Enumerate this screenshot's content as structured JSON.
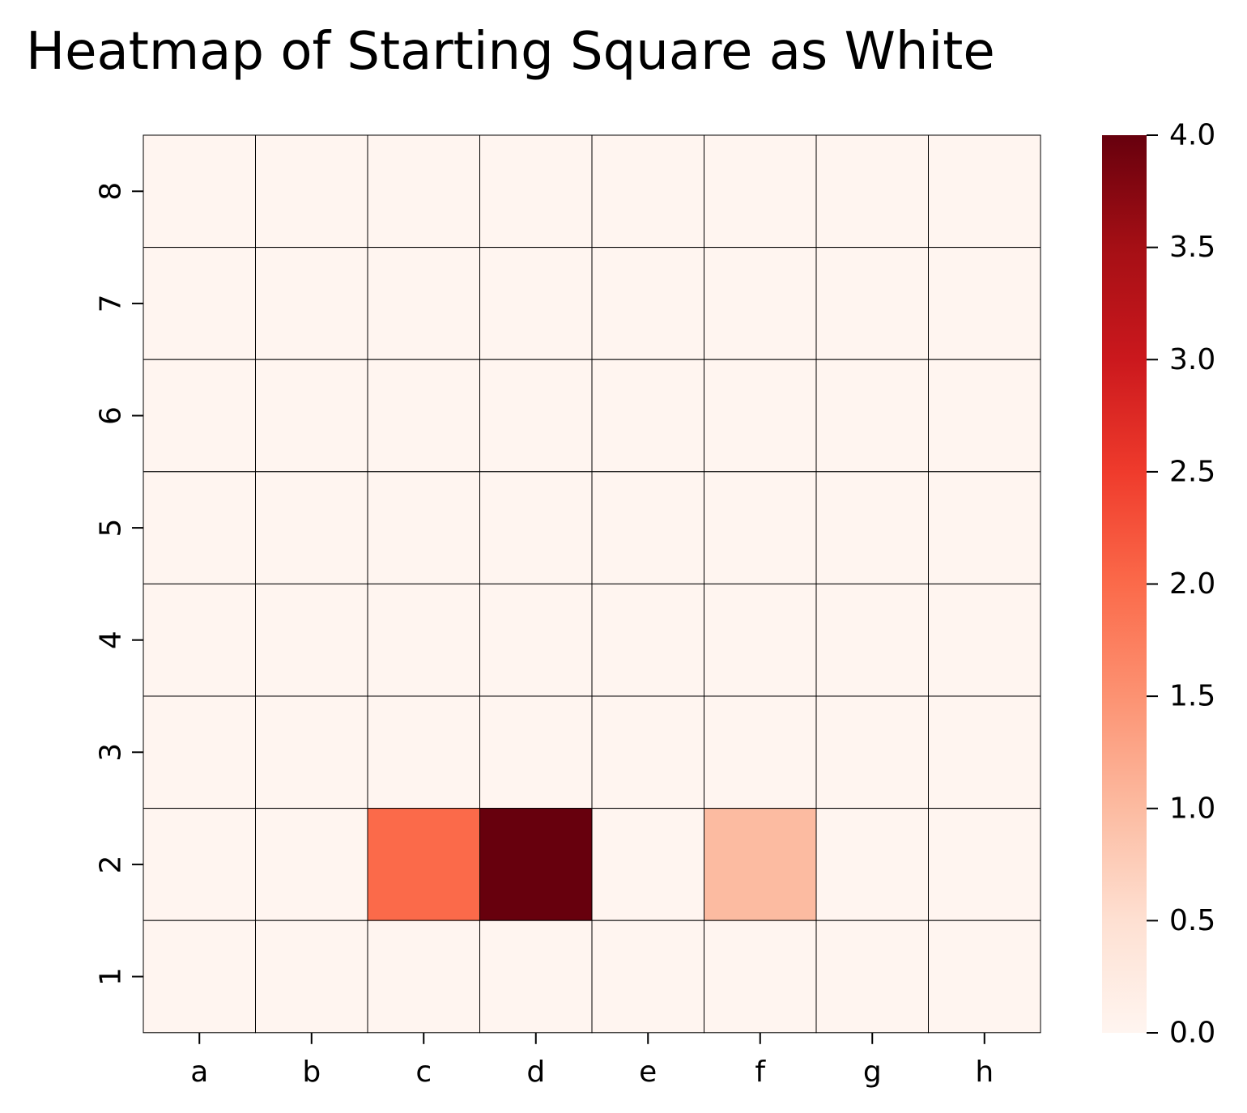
{
  "chart_data": {
    "type": "heatmap",
    "title": "Heatmap of Starting Square as White",
    "xlabel": "",
    "ylabel": "",
    "x_categories": [
      "a",
      "b",
      "c",
      "d",
      "e",
      "f",
      "g",
      "h"
    ],
    "y_categories": [
      "8",
      "7",
      "6",
      "5",
      "4",
      "3",
      "2",
      "1"
    ],
    "values": [
      [
        0,
        0,
        0,
        0,
        0,
        0,
        0,
        0
      ],
      [
        0,
        0,
        0,
        0,
        0,
        0,
        0,
        0
      ],
      [
        0,
        0,
        0,
        0,
        0,
        0,
        0,
        0
      ],
      [
        0,
        0,
        0,
        0,
        0,
        0,
        0,
        0
      ],
      [
        0,
        0,
        0,
        0,
        0,
        0,
        0,
        0
      ],
      [
        0,
        0,
        0,
        0,
        0,
        0,
        0,
        0
      ],
      [
        0,
        0,
        2,
        4,
        0,
        1,
        0,
        0
      ],
      [
        0,
        0,
        0,
        0,
        0,
        0,
        0,
        0
      ]
    ],
    "vmin": 0,
    "vmax": 4,
    "colormap": "Reds",
    "colormap_stops": [
      "#fff5f0",
      "#fee0d2",
      "#fcbba1",
      "#fc9272",
      "#fb6a4a",
      "#ef3b2c",
      "#cb181d",
      "#a50f15",
      "#67000d"
    ],
    "colorbar_ticks": [
      "0.0",
      "0.5",
      "1.0",
      "1.5",
      "2.0",
      "2.5",
      "3.0",
      "3.5",
      "4.0"
    ],
    "cell_border_color": "#000000",
    "grid": false,
    "legend": "colorbar-right"
  }
}
